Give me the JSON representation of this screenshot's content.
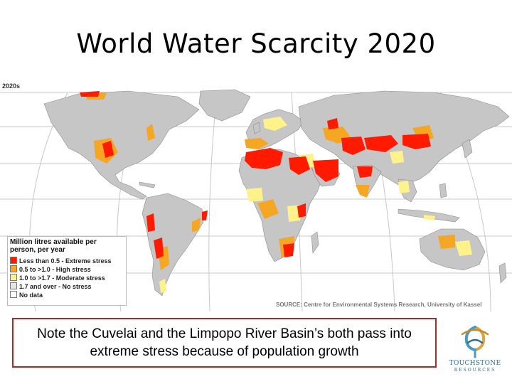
{
  "title": "World Water Scarcity 2020",
  "map": {
    "period": "2020s",
    "source": "SOURCE: Centre for Environmental Systems Research, University of Kassel",
    "colors": {
      "ocean": "#ffffff",
      "land": "#c6c6c6",
      "extreme": "#ff1a00",
      "high": "#f5a623",
      "moderate": "#fff28a",
      "no_stress": "#e6e6e6",
      "no_data": "#ffffff"
    },
    "legend": {
      "title": "Million litres available per person, per year",
      "items": [
        {
          "label": "Less than 0.5 - Extreme stress",
          "color": "#ff1a00"
        },
        {
          "label": "0.5 to >1.0 - High stress",
          "color": "#f5a623"
        },
        {
          "label": "1.0 to >1.7 - Moderate stress",
          "color": "#fff28a"
        },
        {
          "label": "1.7 and over - No stress",
          "color": "#e6e6e6"
        },
        {
          "label": "No data",
          "color": "#ffffff"
        }
      ]
    }
  },
  "note": "Note the Cuvelai and the Limpopo River Basin’s both pass into extreme stress because of population growth",
  "logo": {
    "name": "TOUCHSTONE",
    "subtitle": "RESOURCES"
  }
}
